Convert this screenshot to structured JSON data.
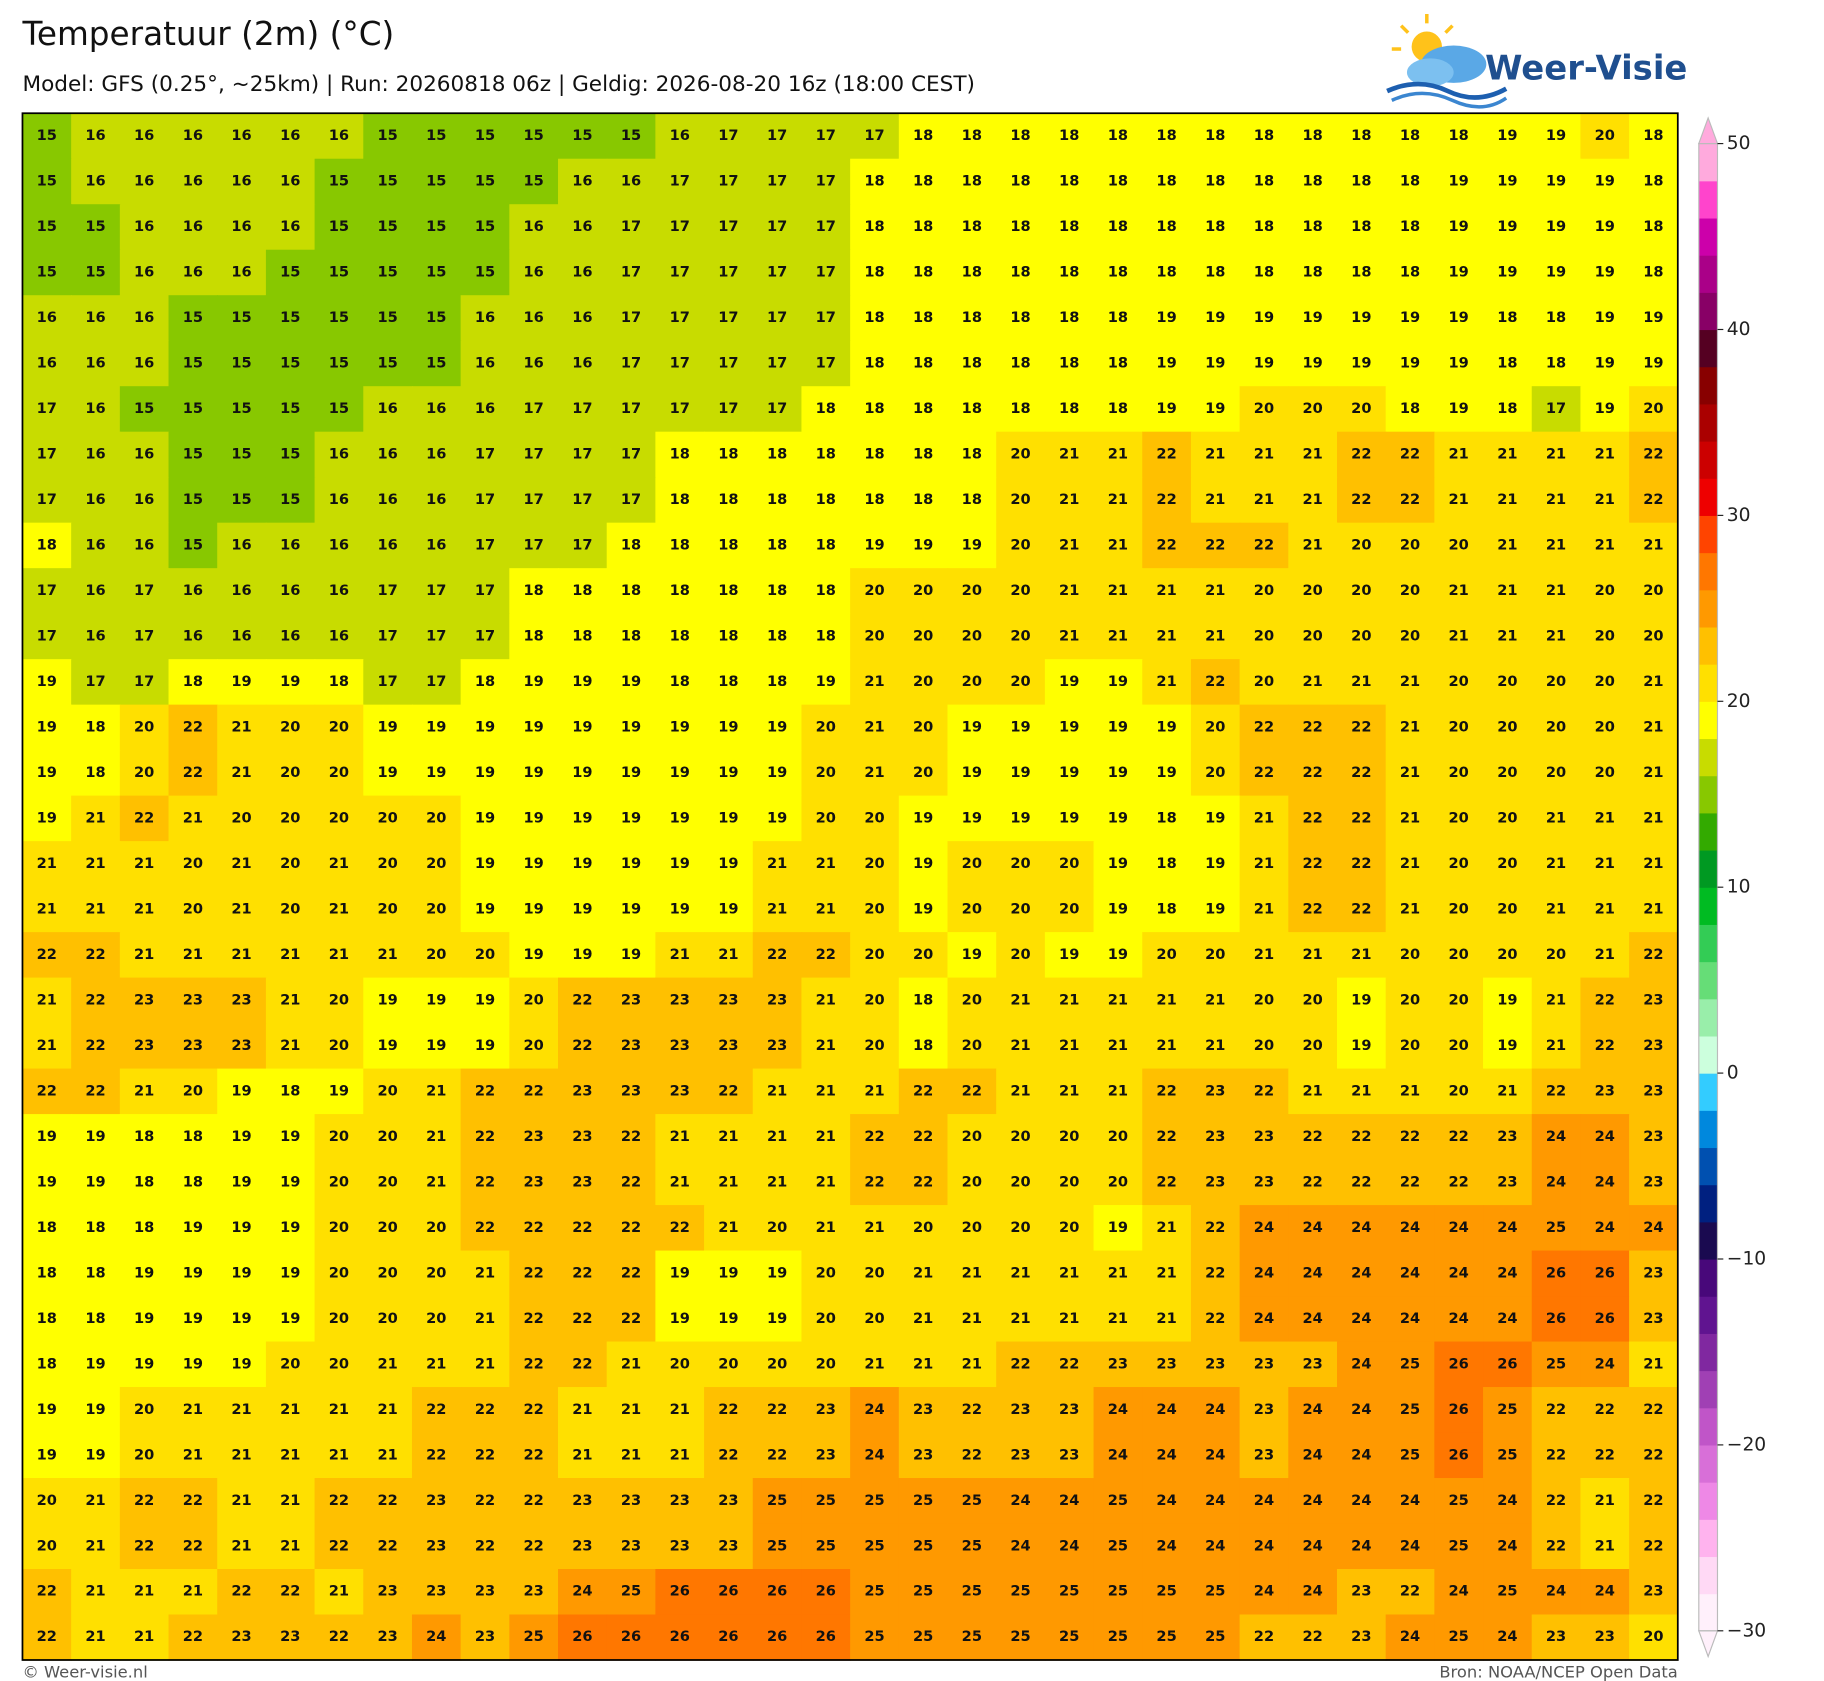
{
  "header": {
    "title": "Temperatuur (2m) (°C)",
    "subtitle": "Model: GFS (0.25°, ~25km)  |  Run: 20260818 06z  |  Geldig: 2026-08-20 16z (18:00 CEST)",
    "logo": "Weer-Visie"
  },
  "footer": {
    "left": "© Weer-visie.nl",
    "right": "Bron: NOAA/NCEP Open Data"
  },
  "colorbar": {
    "lim": [
      -30,
      50
    ],
    "ticks": [
      {
        "value": -30,
        "label": "−30"
      },
      {
        "value": -20,
        "label": "−20"
      },
      {
        "value": -10,
        "label": "−10"
      },
      0,
      10,
      20,
      30,
      40,
      50
    ],
    "colors": [
      "#fff0fb",
      "#ffd9f5",
      "#ffb3ee",
      "#ee88e6",
      "#d86fd8",
      "#c055c8",
      "#a040b4",
      "#8028a0",
      "#601490",
      "#48087a",
      "#1a0a50",
      "#002080",
      "#0050b0",
      "#0088dd",
      "#33ccff",
      "#ccffdd",
      "#99eeaa",
      "#66dd77",
      "#33cc55",
      "#00bb22",
      "#009922",
      "#33aa00",
      "#88c800",
      "#c8dc00",
      "#ffff00",
      "#ffe000",
      "#ffc000",
      "#ff9900",
      "#ff7700",
      "#ff4400",
      "#ee0000",
      "#cc0000",
      "#aa0000",
      "#880000",
      "#550022",
      "#880066",
      "#aa0088",
      "#cc00aa",
      "#ff44cc",
      "#ffaadd"
    ]
  },
  "grid": {
    "rows": [
      [
        15,
        16,
        16,
        16,
        16,
        16,
        16,
        15,
        15,
        15,
        15,
        15,
        15,
        16,
        17,
        17,
        17,
        17,
        18,
        18,
        18,
        18,
        18,
        18,
        18,
        18,
        18,
        18,
        18,
        18,
        19,
        19,
        20,
        18
      ],
      [
        15,
        16,
        16,
        16,
        16,
        16,
        15,
        15,
        15,
        15,
        15,
        16,
        16,
        17,
        17,
        17,
        17,
        18,
        18,
        18,
        18,
        18,
        18,
        18,
        18,
        18,
        18,
        18,
        18,
        19,
        19,
        19,
        19,
        18
      ],
      [
        15,
        15,
        16,
        16,
        16,
        16,
        15,
        15,
        15,
        15,
        16,
        16,
        17,
        17,
        17,
        17,
        17,
        18,
        18,
        18,
        18,
        18,
        18,
        18,
        18,
        18,
        18,
        18,
        18,
        19,
        19,
        19,
        19,
        18
      ],
      [
        15,
        15,
        16,
        16,
        16,
        15,
        15,
        15,
        15,
        15,
        16,
        16,
        17,
        17,
        17,
        17,
        17,
        18,
        18,
        18,
        18,
        18,
        18,
        18,
        18,
        18,
        18,
        18,
        18,
        19,
        19,
        19,
        19,
        18
      ],
      [
        16,
        16,
        16,
        15,
        15,
        15,
        15,
        15,
        15,
        16,
        16,
        16,
        17,
        17,
        17,
        17,
        17,
        18,
        18,
        18,
        18,
        18,
        18,
        19,
        19,
        19,
        19,
        19,
        19,
        19,
        18,
        18,
        19,
        19
      ],
      [
        16,
        16,
        16,
        15,
        15,
        15,
        15,
        15,
        15,
        16,
        16,
        16,
        17,
        17,
        17,
        17,
        17,
        18,
        18,
        18,
        18,
        18,
        18,
        19,
        19,
        19,
        19,
        19,
        19,
        19,
        18,
        18,
        19,
        19
      ],
      [
        17,
        16,
        15,
        15,
        15,
        15,
        15,
        16,
        16,
        16,
        17,
        17,
        17,
        17,
        17,
        17,
        18,
        18,
        18,
        18,
        18,
        18,
        18,
        19,
        19,
        20,
        20,
        20,
        18,
        19,
        18,
        17,
        19,
        20
      ],
      [
        17,
        16,
        16,
        15,
        15,
        15,
        16,
        16,
        16,
        17,
        17,
        17,
        17,
        18,
        18,
        18,
        18,
        18,
        18,
        18,
        20,
        21,
        21,
        22,
        21,
        21,
        21,
        22,
        22,
        21,
        21,
        21,
        21,
        22
      ],
      [
        17,
        16,
        16,
        15,
        15,
        15,
        16,
        16,
        16,
        17,
        17,
        17,
        17,
        18,
        18,
        18,
        18,
        18,
        18,
        18,
        20,
        21,
        21,
        22,
        21,
        21,
        21,
        22,
        22,
        21,
        21,
        21,
        21,
        22
      ],
      [
        18,
        16,
        16,
        15,
        16,
        16,
        16,
        16,
        16,
        17,
        17,
        17,
        18,
        18,
        18,
        18,
        18,
        19,
        19,
        19,
        20,
        21,
        21,
        22,
        22,
        22,
        21,
        20,
        20,
        20,
        21,
        21,
        21,
        21
      ],
      [
        17,
        16,
        17,
        16,
        16,
        16,
        16,
        17,
        17,
        17,
        18,
        18,
        18,
        18,
        18,
        18,
        18,
        20,
        20,
        20,
        20,
        21,
        21,
        21,
        21,
        20,
        20,
        20,
        20,
        21,
        21,
        21,
        20,
        20
      ],
      [
        17,
        16,
        17,
        16,
        16,
        16,
        16,
        17,
        17,
        17,
        18,
        18,
        18,
        18,
        18,
        18,
        18,
        20,
        20,
        20,
        20,
        21,
        21,
        21,
        21,
        20,
        20,
        20,
        20,
        21,
        21,
        21,
        20,
        20
      ],
      [
        19,
        17,
        17,
        18,
        19,
        19,
        18,
        17,
        17,
        18,
        19,
        19,
        19,
        18,
        18,
        18,
        19,
        21,
        20,
        20,
        20,
        19,
        19,
        21,
        22,
        20,
        21,
        21,
        21,
        20,
        20,
        20,
        20,
        21
      ],
      [
        19,
        18,
        20,
        22,
        21,
        20,
        20,
        19,
        19,
        19,
        19,
        19,
        19,
        19,
        19,
        19,
        20,
        21,
        20,
        19,
        19,
        19,
        19,
        19,
        20,
        22,
        22,
        22,
        21,
        20,
        20,
        20,
        20,
        21
      ],
      [
        19,
        18,
        20,
        22,
        21,
        20,
        20,
        19,
        19,
        19,
        19,
        19,
        19,
        19,
        19,
        19,
        20,
        21,
        20,
        19,
        19,
        19,
        19,
        19,
        20,
        22,
        22,
        22,
        21,
        20,
        20,
        20,
        20,
        21
      ],
      [
        19,
        21,
        22,
        21,
        20,
        20,
        20,
        20,
        20,
        19,
        19,
        19,
        19,
        19,
        19,
        19,
        20,
        20,
        19,
        19,
        19,
        19,
        19,
        18,
        19,
        21,
        22,
        22,
        21,
        20,
        20,
        21,
        21,
        21
      ],
      [
        21,
        21,
        21,
        20,
        21,
        20,
        21,
        20,
        20,
        19,
        19,
        19,
        19,
        19,
        19,
        21,
        21,
        20,
        19,
        20,
        20,
        20,
        19,
        18,
        19,
        21,
        22,
        22,
        21,
        20,
        20,
        21,
        21,
        21
      ],
      [
        21,
        21,
        21,
        20,
        21,
        20,
        21,
        20,
        20,
        19,
        19,
        19,
        19,
        19,
        19,
        21,
        21,
        20,
        19,
        20,
        20,
        20,
        19,
        18,
        19,
        21,
        22,
        22,
        21,
        20,
        20,
        21,
        21,
        21
      ],
      [
        22,
        22,
        21,
        21,
        21,
        21,
        21,
        21,
        20,
        20,
        19,
        19,
        19,
        21,
        21,
        22,
        22,
        20,
        20,
        19,
        20,
        19,
        19,
        20,
        20,
        21,
        21,
        21,
        20,
        20,
        20,
        20,
        21,
        22
      ],
      [
        21,
        22,
        23,
        23,
        23,
        21,
        20,
        19,
        19,
        19,
        20,
        22,
        23,
        23,
        23,
        23,
        21,
        20,
        18,
        20,
        21,
        21,
        21,
        21,
        21,
        20,
        20,
        19,
        20,
        20,
        19,
        21,
        22,
        23
      ],
      [
        21,
        22,
        23,
        23,
        23,
        21,
        20,
        19,
        19,
        19,
        20,
        22,
        23,
        23,
        23,
        23,
        21,
        20,
        18,
        20,
        21,
        21,
        21,
        21,
        21,
        20,
        20,
        19,
        20,
        20,
        19,
        21,
        22,
        23
      ],
      [
        22,
        22,
        21,
        20,
        19,
        18,
        19,
        20,
        21,
        22,
        22,
        23,
        23,
        23,
        22,
        21,
        21,
        21,
        22,
        22,
        21,
        21,
        21,
        22,
        23,
        22,
        21,
        21,
        21,
        20,
        21,
        22,
        23,
        23
      ],
      [
        19,
        19,
        18,
        18,
        19,
        19,
        20,
        20,
        21,
        22,
        23,
        23,
        22,
        21,
        21,
        21,
        21,
        22,
        22,
        20,
        20,
        20,
        20,
        22,
        23,
        23,
        22,
        22,
        22,
        22,
        23,
        24,
        24,
        23
      ],
      [
        19,
        19,
        18,
        18,
        19,
        19,
        20,
        20,
        21,
        22,
        23,
        23,
        22,
        21,
        21,
        21,
        21,
        22,
        22,
        20,
        20,
        20,
        20,
        22,
        23,
        23,
        22,
        22,
        22,
        22,
        23,
        24,
        24,
        23
      ],
      [
        18,
        18,
        18,
        19,
        19,
        19,
        20,
        20,
        20,
        22,
        22,
        22,
        22,
        22,
        21,
        20,
        21,
        21,
        20,
        20,
        20,
        20,
        19,
        21,
        22,
        24,
        24,
        24,
        24,
        24,
        24,
        25,
        24,
        24
      ],
      [
        18,
        18,
        19,
        19,
        19,
        19,
        20,
        20,
        20,
        21,
        22,
        22,
        22,
        19,
        19,
        19,
        20,
        20,
        21,
        21,
        21,
        21,
        21,
        21,
        22,
        24,
        24,
        24,
        24,
        24,
        24,
        26,
        26,
        23
      ],
      [
        18,
        18,
        19,
        19,
        19,
        19,
        20,
        20,
        20,
        21,
        22,
        22,
        22,
        19,
        19,
        19,
        20,
        20,
        21,
        21,
        21,
        21,
        21,
        21,
        22,
        24,
        24,
        24,
        24,
        24,
        24,
        26,
        26,
        23
      ],
      [
        18,
        19,
        19,
        19,
        19,
        20,
        20,
        21,
        21,
        21,
        22,
        22,
        21,
        20,
        20,
        20,
        20,
        21,
        21,
        21,
        22,
        22,
        23,
        23,
        23,
        23,
        23,
        24,
        25,
        26,
        26,
        25,
        24,
        21
      ],
      [
        19,
        19,
        20,
        21,
        21,
        21,
        21,
        21,
        22,
        22,
        22,
        21,
        21,
        21,
        22,
        22,
        23,
        24,
        23,
        22,
        23,
        23,
        24,
        24,
        24,
        23,
        24,
        24,
        25,
        26,
        25,
        22,
        22,
        22
      ],
      [
        19,
        19,
        20,
        21,
        21,
        21,
        21,
        21,
        22,
        22,
        22,
        21,
        21,
        21,
        22,
        22,
        23,
        24,
        23,
        22,
        23,
        23,
        24,
        24,
        24,
        23,
        24,
        24,
        25,
        26,
        25,
        22,
        22,
        22
      ],
      [
        20,
        21,
        22,
        22,
        21,
        21,
        22,
        22,
        23,
        22,
        22,
        23,
        23,
        23,
        23,
        25,
        25,
        25,
        25,
        25,
        24,
        24,
        25,
        24,
        24,
        24,
        24,
        24,
        24,
        25,
        24,
        22,
        21,
        22
      ],
      [
        20,
        21,
        22,
        22,
        21,
        21,
        22,
        22,
        23,
        22,
        22,
        23,
        23,
        23,
        23,
        25,
        25,
        25,
        25,
        25,
        24,
        24,
        25,
        24,
        24,
        24,
        24,
        24,
        24,
        25,
        24,
        22,
        21,
        22
      ],
      [
        22,
        21,
        21,
        21,
        22,
        22,
        21,
        23,
        23,
        23,
        23,
        24,
        25,
        26,
        26,
        26,
        26,
        25,
        25,
        25,
        25,
        25,
        25,
        25,
        25,
        24,
        24,
        23,
        22,
        24,
        25,
        24,
        24,
        23
      ],
      [
        22,
        21,
        21,
        22,
        23,
        23,
        22,
        23,
        24,
        23,
        25,
        26,
        26,
        26,
        26,
        26,
        26,
        25,
        25,
        25,
        25,
        25,
        25,
        25,
        25,
        22,
        22,
        23,
        24,
        25,
        24,
        23,
        23,
        20
      ]
    ]
  }
}
